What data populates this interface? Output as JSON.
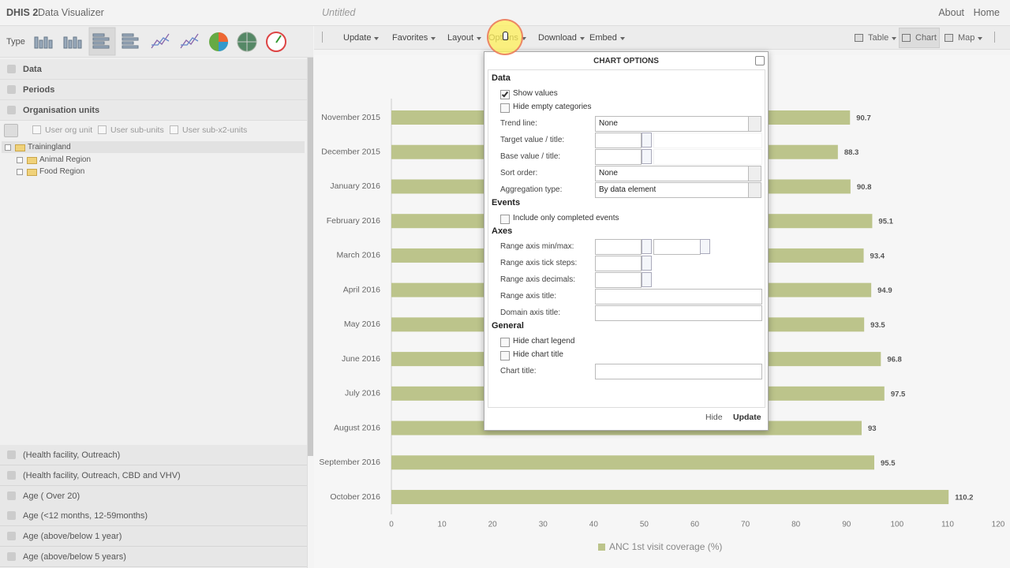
{
  "header": {
    "app_title": "DHIS 2",
    "app_subtitle": "Data Visualizer",
    "doc_title": "Untitled",
    "links": [
      "About",
      "Home"
    ]
  },
  "toolbar": {
    "type_label": "Type",
    "buttons": [
      "Update",
      "Favorites",
      "Layout",
      "Options",
      "Download",
      "Embed"
    ],
    "views": [
      "Table",
      "Chart",
      "Map"
    ],
    "active_view": "Chart"
  },
  "sidebar": {
    "sections": [
      "Data",
      "Periods",
      "Organisation units"
    ],
    "org_options": [
      "User org unit",
      "User sub-units",
      "User sub-x2-units"
    ],
    "tree": [
      {
        "label": "Trainingland",
        "level": 0
      },
      {
        "label": "Animal Region",
        "level": 1
      },
      {
        "label": "Food Region",
        "level": 1
      }
    ],
    "groups": [
      "(Health facility, Outreach)",
      "(Health facility, Outreach, CBD and VHV)",
      "Age ( Over 20)",
      "Age (<12 months, 12-59months)",
      "Age (above/below 1 year)",
      "Age (above/below 5 years)"
    ]
  },
  "chart_data": {
    "type": "hbar",
    "categories": [
      "November 2015",
      "December 2015",
      "January 2016",
      "February 2016",
      "March 2016",
      "April 2016",
      "May 2016",
      "June 2016",
      "July 2016",
      "August 2016",
      "September 2016",
      "October 2016"
    ],
    "series": [
      {
        "name": "ANC 1st visit coverage (%)",
        "color": "#bcc48b",
        "values": [
          90.7,
          88.3,
          90.8,
          95.1,
          93.4,
          94.9,
          93.5,
          96.8,
          97.5,
          93,
          95.5,
          110.2
        ]
      }
    ],
    "xlim": [
      0,
      120
    ],
    "xticks": [
      0,
      10,
      20,
      30,
      40,
      50,
      60,
      70,
      80,
      90,
      100,
      110,
      120
    ],
    "grid": false,
    "show_values": true
  },
  "dialog": {
    "title": "CHART OPTIONS",
    "sections": [
      {
        "heading": "Data",
        "items": [
          {
            "label": "Show values",
            "control": "checkbox",
            "checked": true
          },
          {
            "label": "Hide empty categories",
            "control": "checkbox",
            "checked": false
          },
          {
            "label": "Trend line:",
            "control": "select",
            "value": "None"
          },
          {
            "label": "Target value / title:",
            "control": "spin-text"
          },
          {
            "label": "Base value / title:",
            "control": "spin-text"
          },
          {
            "label": "Sort order:",
            "control": "select",
            "value": "None"
          },
          {
            "label": "Aggregation type:",
            "control": "select",
            "value": "By data element"
          }
        ]
      },
      {
        "heading": "Events",
        "items": [
          {
            "label": "Include only completed events",
            "control": "checkbox",
            "checked": false
          }
        ]
      },
      {
        "heading": "Axes",
        "items": [
          {
            "label": "Range axis min/max:",
            "control": "spin-pair"
          },
          {
            "label": "Range axis tick steps:",
            "control": "spin"
          },
          {
            "label": "Range axis decimals:",
            "control": "spin"
          },
          {
            "label": "Range axis title:",
            "control": "text"
          },
          {
            "label": "Domain axis title:",
            "control": "text"
          }
        ]
      },
      {
        "heading": "General",
        "items": [
          {
            "label": "Hide chart legend",
            "control": "checkbox",
            "checked": false
          },
          {
            "label": "Hide chart title",
            "control": "checkbox",
            "checked": false
          },
          {
            "label": "Chart title:",
            "control": "text"
          }
        ]
      }
    ],
    "buttons": [
      "Hide",
      "Update"
    ]
  }
}
